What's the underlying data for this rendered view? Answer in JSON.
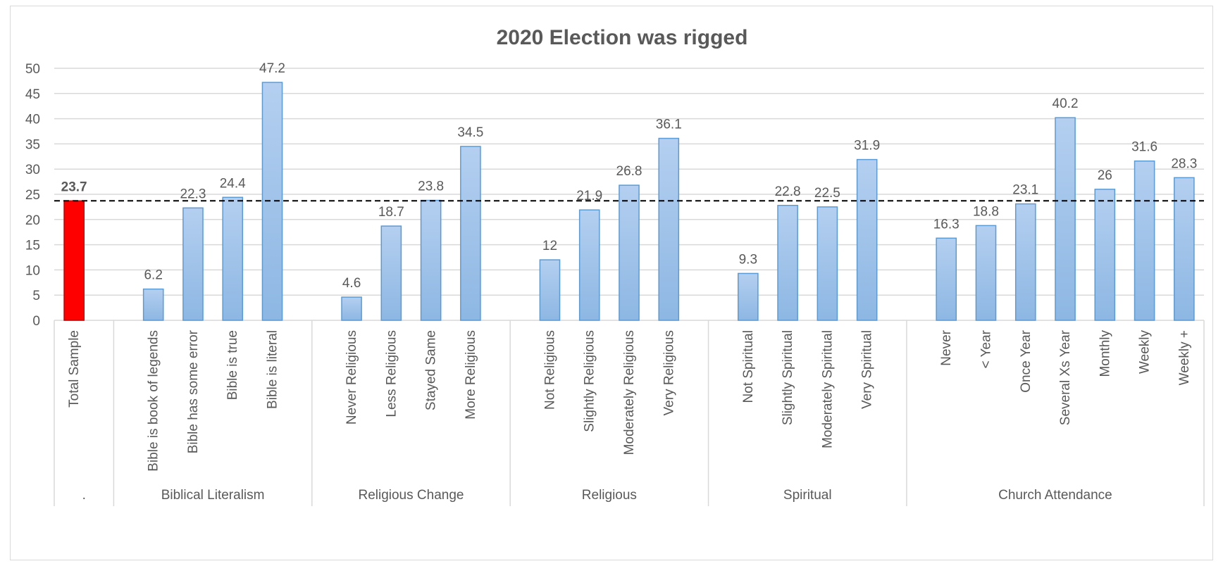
{
  "chart_data": {
    "type": "bar",
    "title": "2020 Election was rigged",
    "xlabel": "",
    "ylabel": "",
    "ylim": [
      0,
      50
    ],
    "yticks": [
      0,
      5,
      10,
      15,
      20,
      25,
      30,
      35,
      40,
      45,
      50
    ],
    "grid": true,
    "reference_line": {
      "value": 23.7,
      "style": "dashed",
      "color": "#000000"
    },
    "colors": {
      "bar": "#9dc3e6",
      "bar_border": "#5b9bd5",
      "highlight": "#ff0000",
      "highlight_border": "#c00000",
      "grid": "#d9d9d9",
      "text": "#595959"
    },
    "groups": [
      {
        "name": ".",
        "categories": [
          {
            "label": "Total Sample",
            "value": 23.7,
            "highlight": true
          }
        ]
      },
      {
        "name": "Biblical Literalism",
        "categories": [
          {
            "label": "Bible is book of legends",
            "value": 6.2
          },
          {
            "label": "Bible has some error",
            "value": 22.3
          },
          {
            "label": "Bible is true",
            "value": 24.4
          },
          {
            "label": "Bible is literal",
            "value": 47.2
          }
        ]
      },
      {
        "name": "Religious Change",
        "categories": [
          {
            "label": "Never Religious",
            "value": 4.6
          },
          {
            "label": "Less Religious",
            "value": 18.7
          },
          {
            "label": "Stayed Same",
            "value": 23.8
          },
          {
            "label": "More Religious",
            "value": 34.5
          }
        ]
      },
      {
        "name": "Religious",
        "categories": [
          {
            "label": "Not Religious",
            "value": 12
          },
          {
            "label": "Slightly Religious",
            "value": 21.9
          },
          {
            "label": "Moderately Religious",
            "value": 26.8
          },
          {
            "label": "Very Religious",
            "value": 36.1
          }
        ]
      },
      {
        "name": "Spiritual",
        "categories": [
          {
            "label": "Not Spiritual",
            "value": 9.3
          },
          {
            "label": "Slightly Spiritual",
            "value": 22.8
          },
          {
            "label": "Moderately Spiritual",
            "value": 22.5
          },
          {
            "label": "Very Spiritual",
            "value": 31.9
          }
        ]
      },
      {
        "name": "Church Attendance",
        "categories": [
          {
            "label": "Never",
            "value": 16.3
          },
          {
            "label": "< Year",
            "value": 18.8
          },
          {
            "label": "Once Year",
            "value": 23.1
          },
          {
            "label": "Several Xs Year",
            "value": 40.2
          },
          {
            "label": "Monthly",
            "value": 26
          },
          {
            "label": "Weekly",
            "value": 31.6
          },
          {
            "label": "Weekly +",
            "value": 28.3
          }
        ]
      }
    ]
  }
}
